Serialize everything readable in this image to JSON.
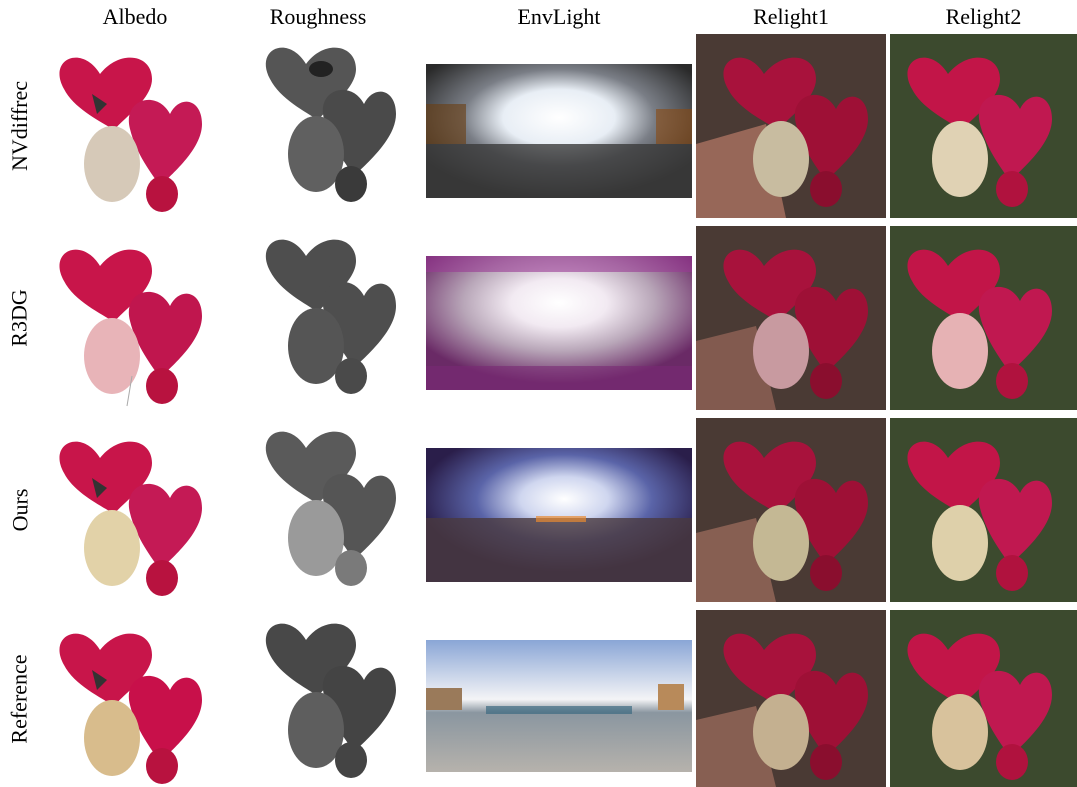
{
  "columns": [
    "Albedo",
    "Roughness",
    "EnvLight",
    "Relight1",
    "Relight2"
  ],
  "rows": [
    "NVdiffrec",
    "R3DG",
    "Ours",
    "Reference"
  ],
  "colors": {
    "heart_red": "#c8154a",
    "heart_dark": "#a80f3c",
    "cream": "#d8c8a8",
    "relight1_floor": "#4a3a34",
    "relight2_grass": "#3c4a2e"
  }
}
